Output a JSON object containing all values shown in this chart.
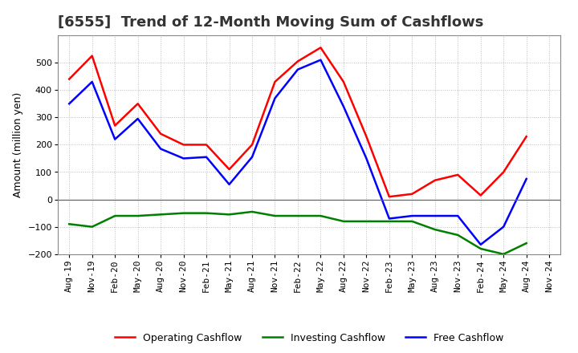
{
  "title": "[6555]  Trend of 12-Month Moving Sum of Cashflows",
  "ylabel": "Amount (million yen)",
  "xlabels": [
    "Aug-19",
    "Nov-19",
    "Feb-20",
    "May-20",
    "Aug-20",
    "Nov-20",
    "Feb-21",
    "May-21",
    "Aug-21",
    "Nov-21",
    "Feb-22",
    "May-22",
    "Aug-22",
    "Nov-22",
    "Feb-23",
    "May-23",
    "Aug-23",
    "Nov-23",
    "Feb-24",
    "May-24",
    "Aug-24",
    "Nov-24"
  ],
  "operating": [
    440,
    525,
    270,
    350,
    240,
    200,
    200,
    110,
    200,
    430,
    505,
    555,
    430,
    230,
    10,
    20,
    70,
    90,
    15,
    100,
    230,
    null
  ],
  "investing": [
    -90,
    -100,
    -60,
    -60,
    -55,
    -50,
    -50,
    -55,
    -45,
    -60,
    -60,
    -60,
    -80,
    -80,
    -80,
    -80,
    -110,
    -130,
    -180,
    -200,
    -160,
    null
  ],
  "free": [
    350,
    430,
    220,
    295,
    185,
    150,
    155,
    55,
    155,
    370,
    475,
    510,
    340,
    150,
    -70,
    -60,
    -60,
    -60,
    -165,
    -100,
    75,
    null
  ],
  "ylim": [
    -200,
    600
  ],
  "yticks": [
    -200,
    -100,
    0,
    100,
    200,
    300,
    400,
    500
  ],
  "operating_color": "#ff0000",
  "investing_color": "#008000",
  "free_color": "#0000ff",
  "bg_color": "#ffffff",
  "plot_bg": "#ffffff",
  "grid_color": "#bbbbbb",
  "linewidth": 1.8,
  "title_fontsize": 13,
  "axis_fontsize": 8,
  "ylabel_fontsize": 9,
  "legend_fontsize": 9
}
